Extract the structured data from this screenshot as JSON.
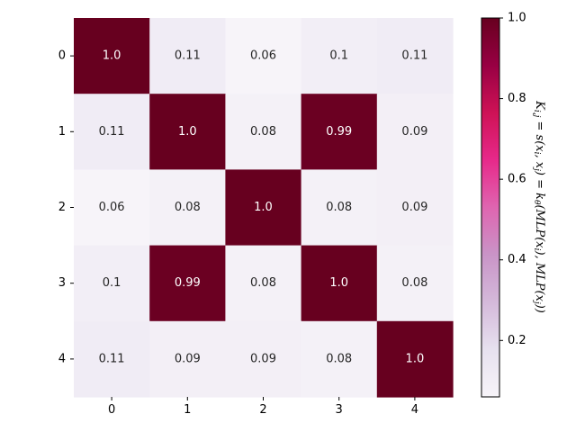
{
  "chart_data": {
    "type": "heatmap",
    "x_categories": [
      "0",
      "1",
      "2",
      "3",
      "4"
    ],
    "y_categories": [
      "0",
      "1",
      "2",
      "3",
      "4"
    ],
    "values": [
      [
        1.0,
        0.11,
        0.06,
        0.1,
        0.11
      ],
      [
        0.11,
        1.0,
        0.08,
        0.99,
        0.09
      ],
      [
        0.06,
        0.08,
        1.0,
        0.08,
        0.09
      ],
      [
        0.1,
        0.99,
        0.08,
        1.0,
        0.08
      ],
      [
        0.11,
        0.09,
        0.09,
        0.08,
        1.0
      ]
    ],
    "cell_labels": [
      [
        "1.0",
        "0.11",
        "0.06",
        "0.1",
        "0.11"
      ],
      [
        "0.11",
        "1.0",
        "0.08",
        "0.99",
        "0.09"
      ],
      [
        "0.06",
        "0.08",
        "1.0",
        "0.08",
        "0.09"
      ],
      [
        "0.1",
        "0.99",
        "0.08",
        "1.0",
        "0.08"
      ],
      [
        "0.11",
        "0.09",
        "0.09",
        "0.08",
        "1.0"
      ]
    ],
    "colorbar": {
      "min": 0.06,
      "max": 1.0,
      "ticks": [
        "0.2",
        "0.4",
        "0.6",
        "0.8",
        "1.0"
      ],
      "label": "K_{i,j} = s(x_i, x_j) = k_θ(MLP(x_i), MLP(x_j))",
      "colormap": "PuRd",
      "stops": [
        "#f7f4f9",
        "#e7e1ef",
        "#d4b9da",
        "#c994c7",
        "#df65b0",
        "#e7298a",
        "#ce1256",
        "#980043",
        "#67001f"
      ]
    },
    "grid": false
  }
}
